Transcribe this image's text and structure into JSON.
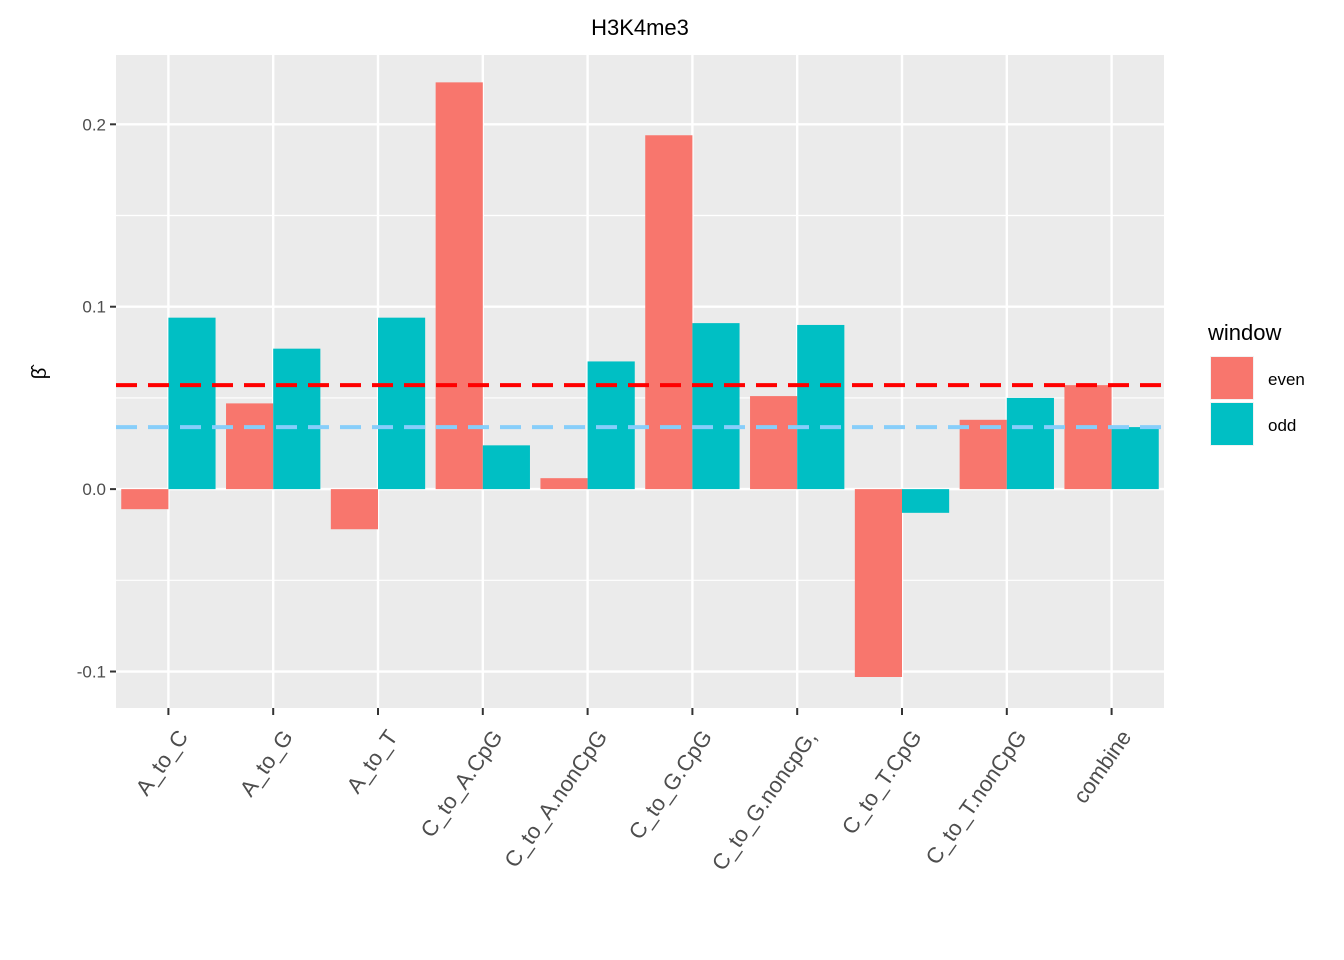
{
  "chart_data": {
    "type": "bar",
    "title": "H3K4me3",
    "xlabel": "",
    "ylabel": "β̂",
    "ylim": [
      -0.12,
      0.238
    ],
    "y_ticks": [
      -0.1,
      0.0,
      0.1,
      0.2
    ],
    "y_tick_labels": [
      "-0.1",
      "0.0",
      "0.1",
      "0.2"
    ],
    "categories": [
      "A_to_C",
      "A_to_G",
      "A_to_T",
      "C_to_A.CpG",
      "C_to_A.nonCpG",
      "C_to_G.CpG",
      "C_to_G.noncpG,",
      "C_to_T.CpG",
      "C_to_T.nonCpG",
      "combine"
    ],
    "series": [
      {
        "name": "even",
        "color": "#F8766D",
        "values": [
          -0.011,
          0.047,
          -0.022,
          0.223,
          0.006,
          0.194,
          0.051,
          -0.103,
          0.038,
          0.057
        ]
      },
      {
        "name": "odd",
        "color": "#00BFC4",
        "values": [
          0.094,
          0.077,
          0.094,
          0.024,
          0.07,
          0.091,
          0.09,
          -0.013,
          0.05,
          0.034
        ]
      }
    ],
    "hlines": [
      {
        "y": 0.057,
        "color": "#FF0000",
        "style": "dashed"
      },
      {
        "y": 0.034,
        "color": "#87CEFA",
        "style": "dashed"
      }
    ],
    "legend": {
      "title": "window",
      "placement": "right"
    },
    "grid": true,
    "panel_background": "#EBEBEB"
  }
}
